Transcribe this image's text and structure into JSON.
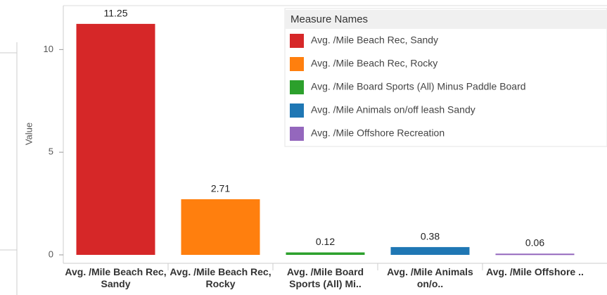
{
  "chart_data": {
    "type": "bar",
    "y_label": "Value",
    "categories": [
      "Avg. /Mile Beach Rec, Sandy",
      "Avg. /Mile Beach Rec, Rocky",
      "Avg. /Mile Board Sports (All) Mi..",
      "Avg. /Mile Animals on/o..",
      "Avg. /Mile Offshore .."
    ],
    "values": [
      11.25,
      2.71,
      0.12,
      0.38,
      0.06
    ],
    "colors": [
      "#d62728",
      "#ff7f0e",
      "#2ca02c",
      "#1f77b4",
      "#9467bd"
    ],
    "ylim": [
      0,
      12.55
    ],
    "yticks": [
      0,
      5,
      10
    ],
    "grid": false,
    "legend": {
      "title": "Measure Names",
      "position": "upper right",
      "entries": [
        "Avg. /Mile Beach Rec, Sandy",
        "Avg. /Mile Beach Rec, Rocky",
        "Avg. /Mile Board Sports (All) Minus Paddle Board",
        "Avg. /Mile Animals on/off leash Sandy",
        "Avg. /Mile Offshore Recreation"
      ]
    }
  }
}
